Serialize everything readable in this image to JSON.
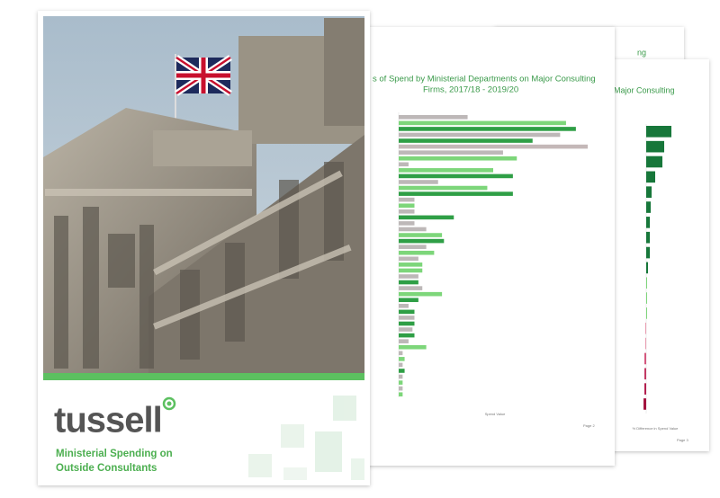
{
  "cover": {
    "brand": "tussell",
    "title_line1": "Ministerial Spending on",
    "title_line2": "Outside Consultants"
  },
  "page2": {
    "title_line1": "s of Spend by Ministerial Departments on Major Consulting",
    "title_line2": "Firms, 2017/18 - 2019/20",
    "x_axis_label": "Spend Value",
    "page_label": "Page 2",
    "values": [
      35,
      85,
      90,
      82,
      68,
      96,
      53,
      60,
      5,
      48,
      58,
      20,
      45,
      58,
      8,
      8,
      8,
      28,
      8,
      14,
      22,
      23,
      14,
      18,
      10,
      12,
      12,
      10,
      10,
      12,
      22,
      10,
      5,
      8,
      8,
      8,
      7,
      8,
      5,
      14,
      2,
      3,
      2,
      3,
      2,
      2,
      2,
      2
    ],
    "colors": [
      "#bdb8b8",
      "#7dd67a",
      "#2f9f46",
      "#bdb8b8",
      "#2f9f46",
      "#c4b8b8",
      "#bdb8b8",
      "#7dd67a",
      "#bdb8b8",
      "#7dd67a",
      "#2f9f46",
      "#bdb8b8",
      "#7dd67a",
      "#2f9f46",
      "#bdb8b8",
      "#7dd67a",
      "#bdb8b8",
      "#2f9f46",
      "#bdb8b8",
      "#bdb8b8",
      "#7dd67a",
      "#2f9f46",
      "#bdb8b8",
      "#7dd67a",
      "#bdb8b8",
      "#7dd67a",
      "#7dd67a",
      "#bdb8b8",
      "#2f9f46",
      "#bdb8b8",
      "#7dd67a",
      "#2f9f46",
      "#bdb8b8",
      "#2f9f46",
      "#bdb8b8",
      "#2f9f46",
      "#bdb8b8",
      "#2f9f46",
      "#bdb8b8",
      "#7dd67a",
      "#bdb8b8",
      "#7dd67a",
      "#bdb8b8",
      "#2f9f46",
      "#bdb8b8",
      "#7dd67a",
      "#bdb8b8",
      "#7dd67a"
    ]
  },
  "page3": {
    "title": "Major Consulting",
    "x_axis_label": "% Difference in Spend Value",
    "page_label": "Page 3",
    "values": [
      28,
      20,
      18,
      10,
      6,
      5,
      4,
      4,
      4,
      2,
      1,
      1,
      1,
      -1,
      -1,
      -2,
      -2,
      -2,
      -3
    ],
    "colors": [
      "#17773a",
      "#17773a",
      "#17773a",
      "#17773a",
      "#17773a",
      "#17773a",
      "#17773a",
      "#17773a",
      "#17773a",
      "#17773a",
      "#7dd67a",
      "#7dd67a",
      "#7dd67a",
      "#e79bb0",
      "#e79bb0",
      "#d4587e",
      "#c23a64",
      "#b3204f",
      "#a3143f"
    ]
  },
  "page_back": {
    "title": "ng"
  }
}
